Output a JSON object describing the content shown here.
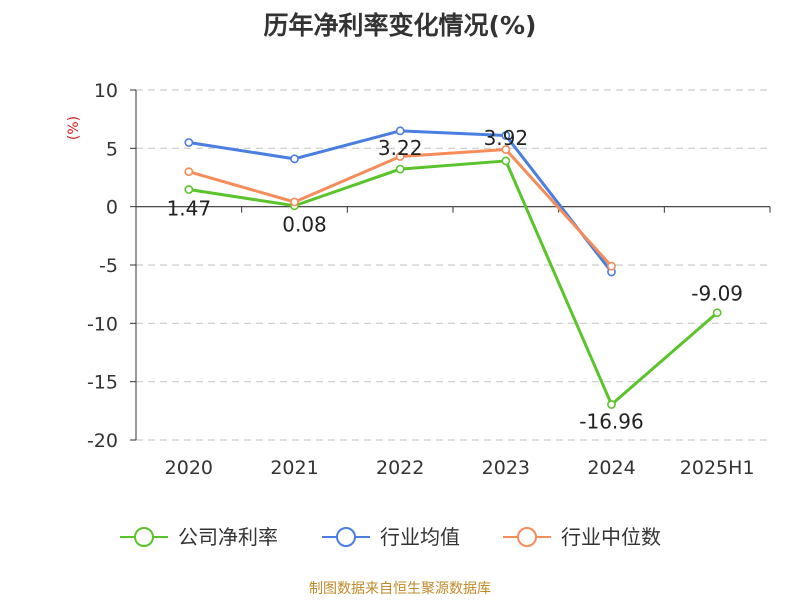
{
  "chart_data": {
    "type": "line",
    "title": "历年净利率变化情况(%)",
    "ylabel": "(%)",
    "categories": [
      "2020",
      "2021",
      "2022",
      "2023",
      "2024",
      "2025H1"
    ],
    "ylim": [
      -20,
      10
    ],
    "yticks": [
      10,
      5,
      0,
      -5,
      -10,
      -15,
      -20
    ],
    "grid": true,
    "legend_position": "bottom",
    "series": [
      {
        "name": "公司净利率",
        "color": "#5bc42c",
        "values": [
          1.47,
          0.08,
          3.22,
          3.92,
          -16.96,
          -9.09
        ],
        "labels": [
          "1.47",
          "0.08",
          "3.22",
          "3.92",
          "-16.96",
          "-9.09"
        ]
      },
      {
        "name": "行业均值",
        "color": "#4a7ee0",
        "values": [
          5.5,
          4.1,
          6.5,
          6.1,
          -5.6,
          null
        ]
      },
      {
        "name": "行业中位数",
        "color": "#f58c5a",
        "values": [
          3.0,
          0.4,
          4.3,
          4.9,
          -5.1,
          null
        ]
      }
    ]
  },
  "footer": {
    "source": "制图数据来自恒生聚源数据库"
  }
}
